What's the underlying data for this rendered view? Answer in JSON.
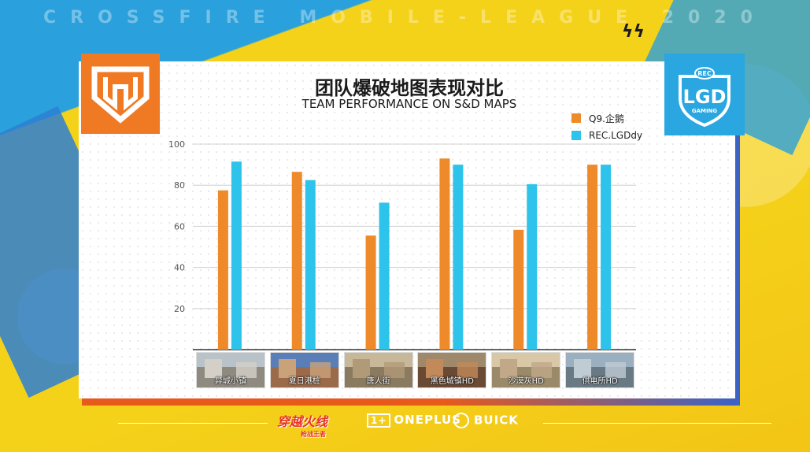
{
  "header": {
    "banner": "CROSSFIRE MOBILE-LEAGUE 2020"
  },
  "title": {
    "cn": "团队爆破地图表现对比",
    "en": "TEAM PERFORMANCE ON S&D MAPS"
  },
  "teams": {
    "left": {
      "name": "Q9.企鹅",
      "logo": "q9-logo"
    },
    "right": {
      "name": "REC.LGDdy",
      "logo": "lgd-gaming-logo",
      "logo_text": "LGD",
      "logo_sub": "GAMING",
      "logo_badge": "REC"
    }
  },
  "chart_data": {
    "type": "bar",
    "title": "团队爆破地图表现对比",
    "subtitle": "TEAM PERFORMANCE ON S&D MAPS",
    "categories": [
      "异城小镇",
      "夏日港桩",
      "唐人街",
      "黑色城镇HD",
      "沙漠灰HD",
      "供电所HD"
    ],
    "series": [
      {
        "name": "Q9.企鹅",
        "color": "#ef8a2a",
        "values": [
          77.5,
          86.5,
          55.5,
          93,
          58.3,
          90
        ]
      },
      {
        "name": "REC.LGDdy",
        "color": "#2ec3ea",
        "values": [
          91.5,
          82.5,
          71.5,
          90,
          80.5,
          90
        ]
      }
    ],
    "ylim": [
      0,
      100
    ],
    "yticks": [
      20,
      40,
      60,
      80,
      100
    ],
    "grid": true,
    "legend": "top-right"
  },
  "footer": {
    "sponsors": [
      "ONEPLUS",
      "BUICK"
    ],
    "game_logo": "穿越火线",
    "game_logo_sub": "枪战王者"
  },
  "colors": {
    "orange": "#ef8a2a",
    "cyan": "#2ec3ea",
    "yellow": "#f5d21a",
    "blue": "#2aa0dc"
  }
}
